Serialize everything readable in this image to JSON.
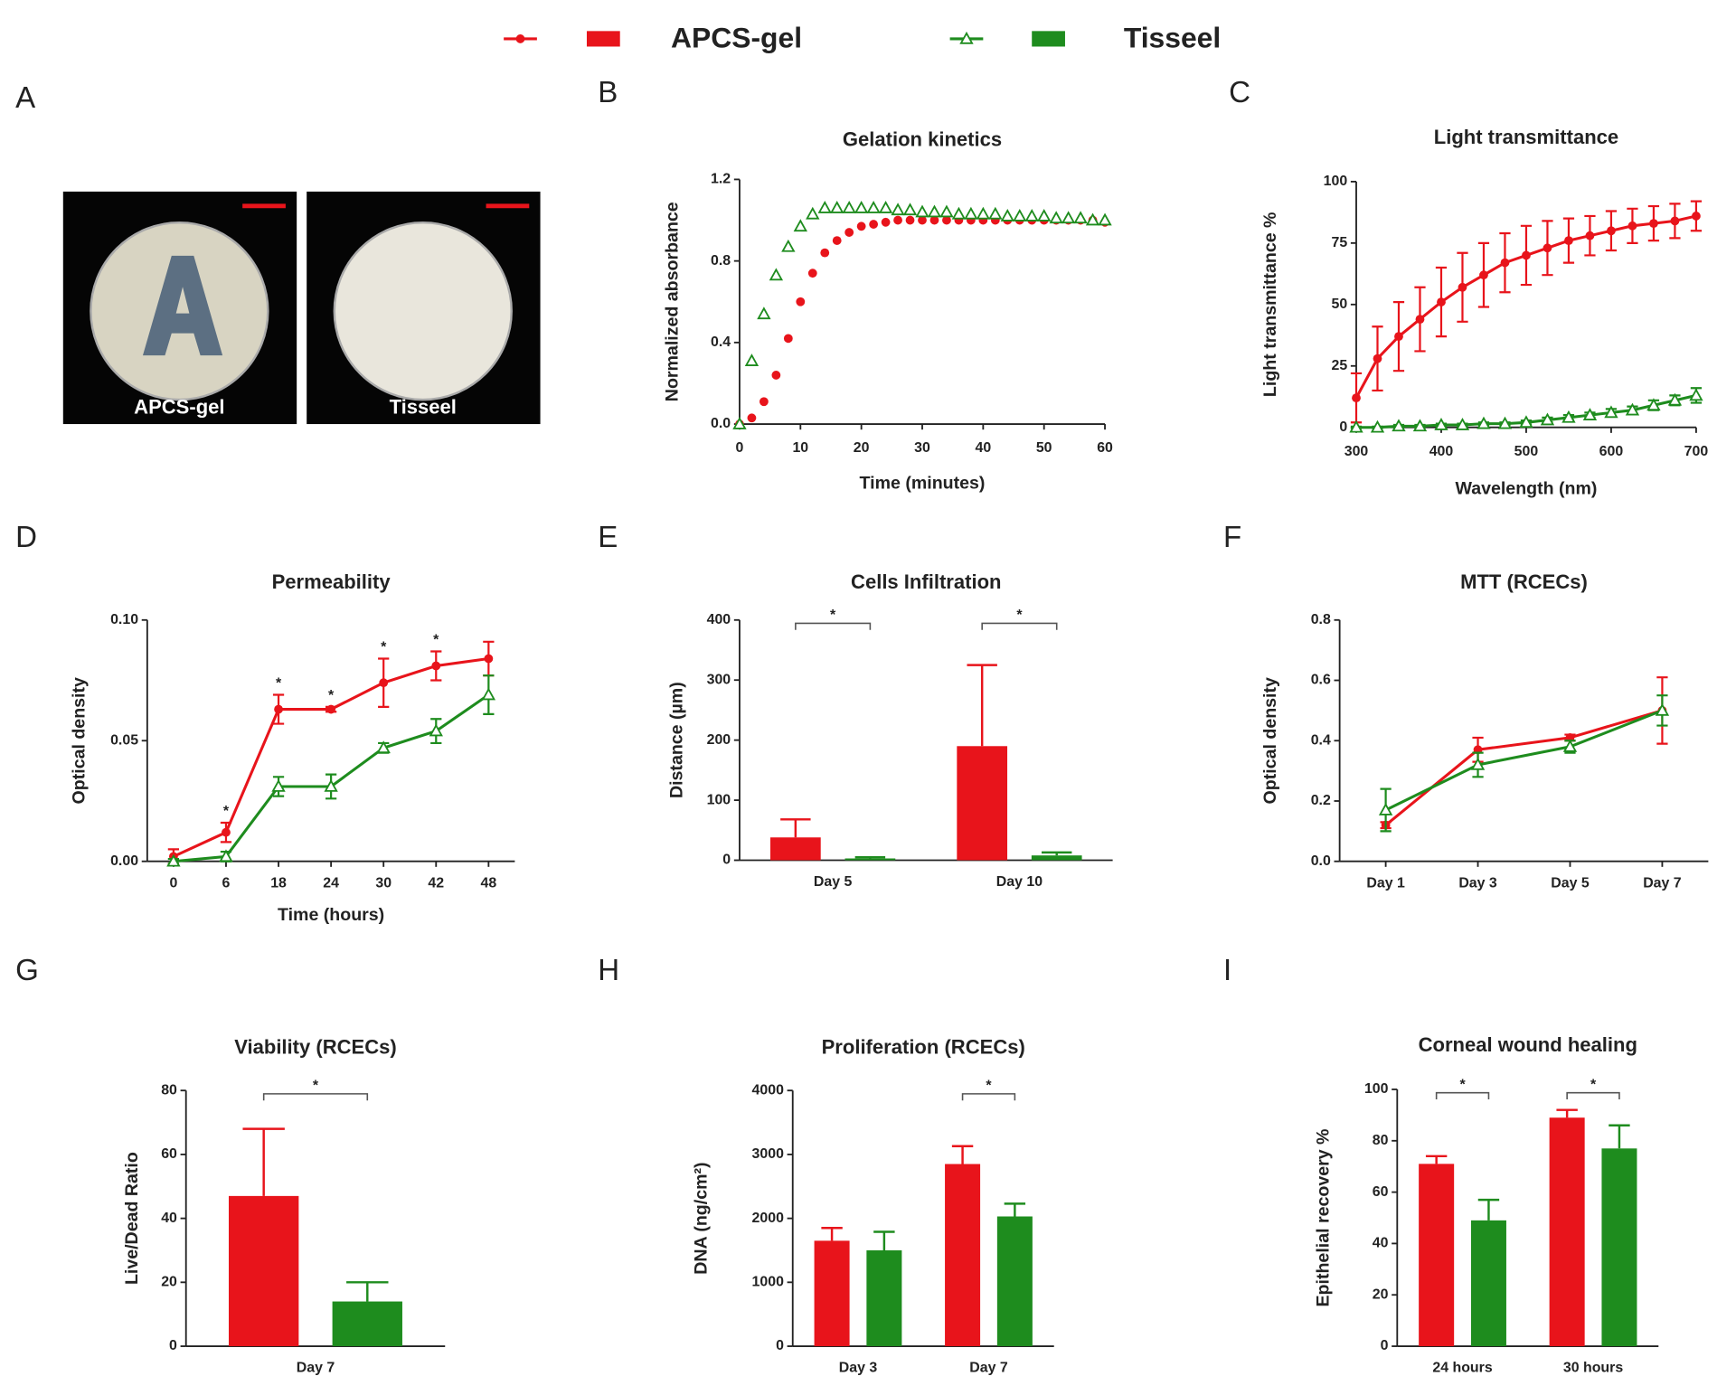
{
  "legend": [
    {
      "name": "APCS-gel",
      "color": "#e8141b"
    },
    {
      "name": "Tisseel",
      "color": "#1e8c1e"
    }
  ],
  "chart_data": [
    {
      "type": "image",
      "panel": "A",
      "images": [
        {
          "label": "APCS-gel"
        },
        {
          "label": "Tisseel"
        }
      ]
    },
    {
      "type": "scatter",
      "panel": "B",
      "title": "Gelation kinetics",
      "xlabel": "Time (minutes)",
      "ylabel": "Normalized absorbance",
      "x": [
        0,
        2,
        4,
        6,
        8,
        10,
        12,
        14,
        16,
        18,
        20,
        22,
        24,
        26,
        28,
        30,
        32,
        34,
        36,
        38,
        40,
        42,
        44,
        46,
        48,
        50,
        52,
        54,
        56,
        58,
        60
      ],
      "series": [
        {
          "color": "#e8141b",
          "marker": "circle",
          "values": [
            0,
            0.03,
            0.11,
            0.24,
            0.42,
            0.6,
            0.74,
            0.84,
            0.9,
            0.94,
            0.97,
            0.98,
            0.99,
            1.0,
            1.0,
            1.0,
            1.0,
            1.0,
            1.0,
            1.0,
            1.0,
            1.0,
            1.0,
            1.0,
            1.0,
            1.0,
            1.0,
            1.0,
            1.0,
            1.0,
            0.99
          ]
        },
        {
          "color": "#1e8c1e",
          "marker": "triangle",
          "values": [
            0,
            0.31,
            0.54,
            0.73,
            0.87,
            0.97,
            1.03,
            1.06,
            1.06,
            1.06,
            1.06,
            1.06,
            1.06,
            1.05,
            1.05,
            1.04,
            1.04,
            1.04,
            1.03,
            1.03,
            1.03,
            1.03,
            1.02,
            1.02,
            1.02,
            1.02,
            1.01,
            1.01,
            1.01,
            1.0,
            1.0
          ]
        }
      ],
      "xlim": [
        0,
        60
      ],
      "xticks": [
        0,
        10,
        20,
        30,
        40,
        50,
        60
      ],
      "ylim": [
        0,
        1.2
      ],
      "yticks": [
        {
          "value": 0,
          "label": "0.0"
        },
        0.4,
        0.8,
        1.2
      ]
    },
    {
      "type": "line",
      "panel": "C",
      "title": "Light transmittance",
      "xlabel": "Wavelength (nm)",
      "ylabel": "Light transmittance %",
      "x": [
        300,
        325,
        350,
        375,
        400,
        425,
        450,
        475,
        500,
        525,
        550,
        575,
        600,
        625,
        650,
        675,
        700
      ],
      "series": [
        {
          "color": "#e8141b",
          "marker": "circle",
          "values": [
            12,
            28,
            37,
            44,
            51,
            57,
            62,
            67,
            70,
            73,
            76,
            78,
            80,
            82,
            83,
            84,
            86
          ],
          "errors": [
            10,
            13,
            14,
            13,
            14,
            14,
            13,
            12,
            12,
            11,
            9,
            8,
            8,
            7,
            7,
            7,
            6
          ]
        },
        {
          "color": "#1e8c1e",
          "marker": "triangle",
          "values": [
            0,
            0,
            0.5,
            0.5,
            1,
            1,
            1.5,
            1.5,
            2,
            3,
            4,
            5,
            6,
            7,
            9,
            11,
            13
          ],
          "errors": [
            0.3,
            0.3,
            0.5,
            0.5,
            0.5,
            0.5,
            0.5,
            0.5,
            0.8,
            1,
            1,
            1,
            1.5,
            1.5,
            2,
            2,
            3
          ]
        }
      ],
      "xlim": [
        300,
        700
      ],
      "xticks": [
        300,
        400,
        500,
        600,
        700
      ],
      "ylim": [
        0,
        100
      ],
      "yticks": [
        0,
        25,
        50,
        75,
        100
      ]
    },
    {
      "type": "line",
      "panel": "D",
      "title": "Permeability",
      "xlabel": "Time (hours)",
      "ylabel": "Optical density",
      "categories": [
        "0",
        "6",
        "18",
        "24",
        "30",
        "42",
        "48"
      ],
      "series": [
        {
          "color": "#e8141b",
          "marker": "circle",
          "values": [
            0.002,
            0.012,
            0.063,
            0.063,
            0.074,
            0.081,
            0.084
          ],
          "errors": [
            0.003,
            0.004,
            0.006,
            0.001,
            0.01,
            0.006,
            0.007
          ]
        },
        {
          "color": "#1e8c1e",
          "marker": "triangle",
          "values": [
            0,
            0.002,
            0.031,
            0.031,
            0.047,
            0.054,
            0.069
          ],
          "errors": [
            0.001,
            0.002,
            0.004,
            0.005,
            0.002,
            0.005,
            0.008
          ]
        }
      ],
      "ylim": [
        0,
        0.1
      ],
      "yticks": [
        {
          "value": 0,
          "label": "0.00"
        },
        {
          "value": 0.05,
          "label": "0.05"
        },
        {
          "value": 0.1,
          "label": "0.10"
        }
      ],
      "annotations": [
        {
          "text": "*",
          "category": "6"
        },
        {
          "text": "*",
          "category": "18"
        },
        {
          "text": "*",
          "category": "24"
        },
        {
          "text": "*",
          "category": "30"
        },
        {
          "text": "*",
          "category": "42"
        }
      ]
    },
    {
      "type": "bar",
      "panel": "E",
      "title": "Cells Infiltration",
      "ylabel": "Distance (µm)",
      "categories": [
        "Day 5",
        "Day 10"
      ],
      "series": [
        {
          "color": "#e8141b",
          "values": [
            38,
            190
          ],
          "errors": [
            30,
            135
          ]
        },
        {
          "color": "#1e8c1e",
          "values": [
            3,
            8
          ],
          "errors": [
            2,
            5
          ]
        }
      ],
      "ylim": [
        0,
        400
      ],
      "yticks": [
        0,
        100,
        200,
        300,
        400
      ],
      "annotations": [
        {
          "text": "*",
          "category": "Day 5"
        },
        {
          "text": "*",
          "category": "Day 10"
        }
      ]
    },
    {
      "type": "line",
      "panel": "F",
      "title": "MTT (RCECs)",
      "ylabel": "Optical density",
      "categories": [
        "Day 1",
        "Day 3",
        "Day 5",
        "Day 7"
      ],
      "series": [
        {
          "color": "#e8141b",
          "marker": "circle",
          "values": [
            0.12,
            0.37,
            0.41,
            0.5
          ],
          "errors": [
            0.01,
            0.04,
            0.01,
            0.11
          ]
        },
        {
          "color": "#1e8c1e",
          "marker": "triangle",
          "values": [
            0.17,
            0.32,
            0.38,
            0.5
          ],
          "errors": [
            0.07,
            0.04,
            0.02,
            0.05
          ]
        }
      ],
      "ylim": [
        0,
        0.8
      ],
      "yticks": [
        {
          "value": 0,
          "label": "0.0"
        },
        0.2,
        0.4,
        0.6,
        0.8
      ]
    },
    {
      "type": "bar",
      "panel": "G",
      "title": "Viability (RCECs)",
      "ylabel": "Live/Dead Ratio",
      "categories": [
        "Day 7"
      ],
      "series": [
        {
          "color": "#e8141b",
          "values": [
            47
          ],
          "errors": [
            21
          ]
        },
        {
          "color": "#1e8c1e",
          "values": [
            14
          ],
          "errors": [
            6
          ]
        }
      ],
      "ylim": [
        0,
        80
      ],
      "yticks": [
        0,
        20,
        40,
        60,
        80
      ],
      "annotations": [
        {
          "text": "*",
          "category": "Day 7"
        }
      ]
    },
    {
      "type": "bar",
      "panel": "H",
      "title": "Proliferation (RCECs)",
      "ylabel": "DNA (ng/cm²)",
      "categories": [
        "Day 3",
        "Day 7"
      ],
      "series": [
        {
          "color": "#e8141b",
          "values": [
            1650,
            2850
          ],
          "errors": [
            200,
            280
          ]
        },
        {
          "color": "#1e8c1e",
          "values": [
            1500,
            2030
          ],
          "errors": [
            290,
            200
          ]
        }
      ],
      "ylim": [
        0,
        4000
      ],
      "yticks": [
        0,
        1000,
        2000,
        3000,
        4000
      ],
      "annotations": [
        {
          "text": "*",
          "category": "Day 7"
        }
      ]
    },
    {
      "type": "bar",
      "panel": "I",
      "title": "Corneal wound healing",
      "ylabel": "Epithelial recovery %",
      "categories": [
        "24 hours",
        "30 hours"
      ],
      "series": [
        {
          "color": "#e8141b",
          "values": [
            71,
            89
          ],
          "errors": [
            3,
            3
          ]
        },
        {
          "color": "#1e8c1e",
          "values": [
            49,
            77
          ],
          "errors": [
            8,
            9
          ]
        }
      ],
      "ylim": [
        0,
        100
      ],
      "yticks": [
        0,
        20,
        40,
        60,
        80,
        100
      ],
      "annotations": [
        {
          "text": "*",
          "category": "24 hours"
        },
        {
          "text": "*",
          "category": "30 hours"
        }
      ]
    }
  ]
}
